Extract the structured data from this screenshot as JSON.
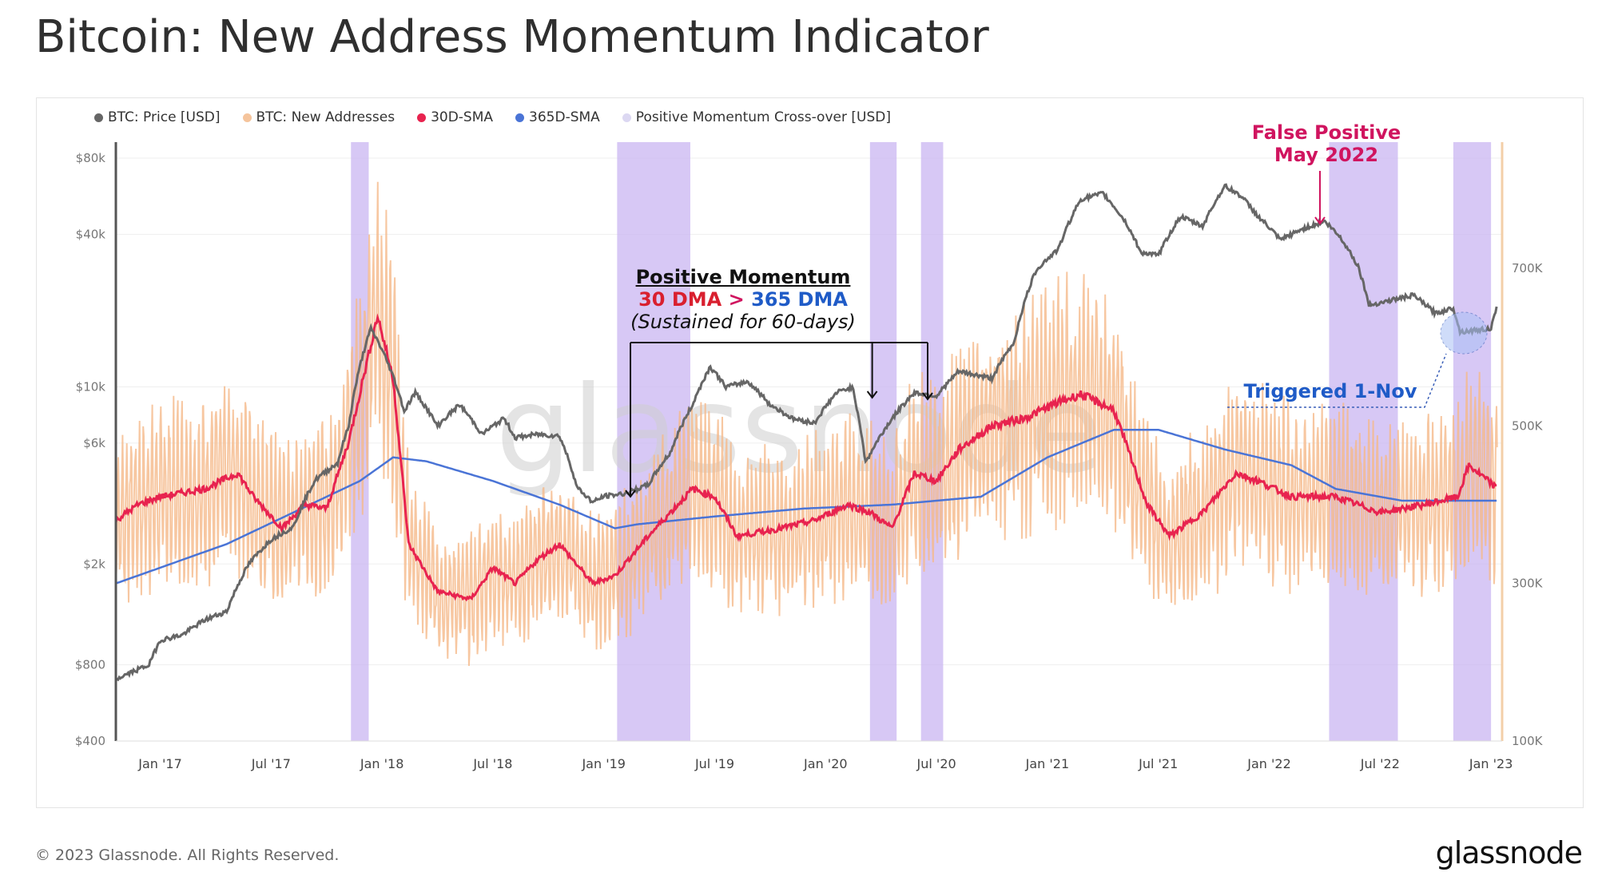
{
  "title": "Bitcoin: New Address Momentum Indicator",
  "footer": {
    "copyright": "© 2023 Glassnode. All Rights Reserved.",
    "logo": "glassnode"
  },
  "watermark": "glassnode",
  "colors": {
    "price": "#666666",
    "new_addresses": "#f5b98a",
    "sma30": "#e8234f",
    "sma365": "#4a74d6",
    "crossover": "#c9b6f2",
    "annot_red": "#d0145f",
    "annot_blue": "#1f5bc7"
  },
  "annotations": {
    "momentum_title": "Positive Momentum",
    "momentum_red": "30 DMA",
    "momentum_gt": ">",
    "momentum_blue": "365 DMA",
    "momentum_sub": "(Sustained for 60-days)",
    "false_positive_1": "False Positive",
    "false_positive_2": "May 2022",
    "triggered": "Triggered 1-Nov"
  },
  "chart_data": {
    "type": "line",
    "title": "Bitcoin: New Address Momentum Indicator",
    "legend": [
      "BTC: Price [USD]",
      "BTC: New Addresses",
      "30D-SMA",
      "365D-SMA",
      "Positive Momentum Cross-over [USD]"
    ],
    "legend_position": "top-left",
    "x_ticks": [
      "Jan '17",
      "Jul '17",
      "Jan '18",
      "Jul '18",
      "Jan '19",
      "Jul '19",
      "Jan '20",
      "Jul '20",
      "Jan '21",
      "Jul '21",
      "Jan '22",
      "Jul '22",
      "Jan '23"
    ],
    "x_range": [
      2016.8,
      2023.05
    ],
    "y_left": {
      "label": "Price [USD]",
      "scale": "log",
      "ticks": [
        "$400",
        "$800",
        "$2k",
        "$6k",
        "$10k",
        "$40k",
        "$80k"
      ],
      "tick_values": [
        400,
        800,
        2000,
        6000,
        10000,
        40000,
        80000
      ],
      "range": [
        400,
        80000
      ]
    },
    "y_right": {
      "label": "New Addresses",
      "scale": "linear",
      "ticks": [
        "100K",
        "300K",
        "500K",
        "700K"
      ],
      "tick_values": [
        100000,
        300000,
        500000,
        700000
      ],
      "range": [
        100000,
        860000
      ]
    },
    "grid": true,
    "price": [
      [
        2016.8,
        700
      ],
      [
        2016.95,
        800
      ],
      [
        2017.0,
        1000
      ],
      [
        2017.1,
        1050
      ],
      [
        2017.2,
        1200
      ],
      [
        2017.3,
        1300
      ],
      [
        2017.4,
        2000
      ],
      [
        2017.5,
        2500
      ],
      [
        2017.6,
        2800
      ],
      [
        2017.7,
        4300
      ],
      [
        2017.8,
        5000
      ],
      [
        2017.85,
        7000
      ],
      [
        2017.95,
        17000
      ],
      [
        2018.0,
        14000
      ],
      [
        2018.05,
        11000
      ],
      [
        2018.1,
        8000
      ],
      [
        2018.15,
        9500
      ],
      [
        2018.25,
        7000
      ],
      [
        2018.35,
        8500
      ],
      [
        2018.45,
        6500
      ],
      [
        2018.55,
        7500
      ],
      [
        2018.6,
        6300
      ],
      [
        2018.7,
        6500
      ],
      [
        2018.8,
        6400
      ],
      [
        2018.88,
        4000
      ],
      [
        2018.95,
        3500
      ],
      [
        2019.0,
        3700
      ],
      [
        2019.1,
        3800
      ],
      [
        2019.2,
        4100
      ],
      [
        2019.3,
        5500
      ],
      [
        2019.4,
        8500
      ],
      [
        2019.48,
        12000
      ],
      [
        2019.55,
        10000
      ],
      [
        2019.65,
        10500
      ],
      [
        2019.75,
        8500
      ],
      [
        2019.85,
        7500
      ],
      [
        2019.95,
        7200
      ],
      [
        2020.05,
        9500
      ],
      [
        2020.12,
        10000
      ],
      [
        2020.18,
        5000
      ],
      [
        2020.3,
        7500
      ],
      [
        2020.4,
        9500
      ],
      [
        2020.5,
        9200
      ],
      [
        2020.6,
        11500
      ],
      [
        2020.75,
        10800
      ],
      [
        2020.85,
        15000
      ],
      [
        2020.95,
        29000
      ],
      [
        2021.05,
        35000
      ],
      [
        2021.15,
        55000
      ],
      [
        2021.25,
        58000
      ],
      [
        2021.35,
        45000
      ],
      [
        2021.42,
        34000
      ],
      [
        2021.5,
        33000
      ],
      [
        2021.6,
        47000
      ],
      [
        2021.7,
        43000
      ],
      [
        2021.8,
        62000
      ],
      [
        2021.87,
        57000
      ],
      [
        2021.95,
        47000
      ],
      [
        2022.05,
        38000
      ],
      [
        2022.15,
        42000
      ],
      [
        2022.25,
        45000
      ],
      [
        2022.32,
        39000
      ],
      [
        2022.4,
        30000
      ],
      [
        2022.45,
        21000
      ],
      [
        2022.55,
        22000
      ],
      [
        2022.65,
        23000
      ],
      [
        2022.75,
        19500
      ],
      [
        2022.83,
        20500
      ],
      [
        2022.86,
        16500
      ],
      [
        2022.95,
        16800
      ],
      [
        2023.0,
        17000
      ],
      [
        2023.03,
        21000
      ]
    ],
    "new_addresses_30d_sma": [
      [
        2016.8,
        380000
      ],
      [
        2016.9,
        400000
      ],
      [
        2017.0,
        410000
      ],
      [
        2017.2,
        420000
      ],
      [
        2017.35,
        440000
      ],
      [
        2017.42,
        410000
      ],
      [
        2017.55,
        370000
      ],
      [
        2017.65,
        400000
      ],
      [
        2017.75,
        395000
      ],
      [
        2017.85,
        480000
      ],
      [
        2017.98,
        640000
      ],
      [
        2018.05,
        560000
      ],
      [
        2018.12,
        350000
      ],
      [
        2018.25,
        290000
      ],
      [
        2018.4,
        280000
      ],
      [
        2018.5,
        320000
      ],
      [
        2018.6,
        300000
      ],
      [
        2018.7,
        330000
      ],
      [
        2018.8,
        350000
      ],
      [
        2018.95,
        300000
      ],
      [
        2019.05,
        310000
      ],
      [
        2019.2,
        360000
      ],
      [
        2019.4,
        420000
      ],
      [
        2019.5,
        410000
      ],
      [
        2019.6,
        360000
      ],
      [
        2019.8,
        370000
      ],
      [
        2019.95,
        380000
      ],
      [
        2020.1,
        400000
      ],
      [
        2020.2,
        390000
      ],
      [
        2020.3,
        370000
      ],
      [
        2020.4,
        440000
      ],
      [
        2020.5,
        430000
      ],
      [
        2020.6,
        470000
      ],
      [
        2020.75,
        500000
      ],
      [
        2020.9,
        510000
      ],
      [
        2021.05,
        530000
      ],
      [
        2021.15,
        540000
      ],
      [
        2021.3,
        520000
      ],
      [
        2021.45,
        400000
      ],
      [
        2021.55,
        360000
      ],
      [
        2021.7,
        390000
      ],
      [
        2021.85,
        440000
      ],
      [
        2021.95,
        430000
      ],
      [
        2022.1,
        410000
      ],
      [
        2022.3,
        410000
      ],
      [
        2022.5,
        390000
      ],
      [
        2022.7,
        400000
      ],
      [
        2022.85,
        410000
      ],
      [
        2022.9,
        450000
      ],
      [
        2023.03,
        420000
      ]
    ],
    "new_addresses_365d_sma": [
      [
        2016.8,
        300000
      ],
      [
        2017.0,
        320000
      ],
      [
        2017.3,
        350000
      ],
      [
        2017.6,
        390000
      ],
      [
        2017.9,
        430000
      ],
      [
        2018.05,
        460000
      ],
      [
        2018.2,
        455000
      ],
      [
        2018.5,
        430000
      ],
      [
        2018.8,
        400000
      ],
      [
        2019.05,
        370000
      ],
      [
        2019.15,
        375000
      ],
      [
        2019.5,
        385000
      ],
      [
        2019.9,
        395000
      ],
      [
        2020.3,
        400000
      ],
      [
        2020.7,
        410000
      ],
      [
        2021.0,
        460000
      ],
      [
        2021.3,
        495000
      ],
      [
        2021.5,
        495000
      ],
      [
        2021.8,
        470000
      ],
      [
        2022.1,
        450000
      ],
      [
        2022.3,
        420000
      ],
      [
        2022.6,
        405000
      ],
      [
        2022.9,
        405000
      ],
      [
        2023.03,
        405000
      ]
    ],
    "new_addresses_daily_band": {
      "min_approx": 230000,
      "max_approx": 790000
    },
    "crossover_periods": [
      [
        2017.86,
        2017.94
      ],
      [
        2019.06,
        2019.39
      ],
      [
        2020.2,
        2020.32
      ],
      [
        2020.43,
        2020.53
      ],
      [
        2022.27,
        2022.58
      ],
      [
        2022.83,
        2023.0
      ]
    ]
  }
}
